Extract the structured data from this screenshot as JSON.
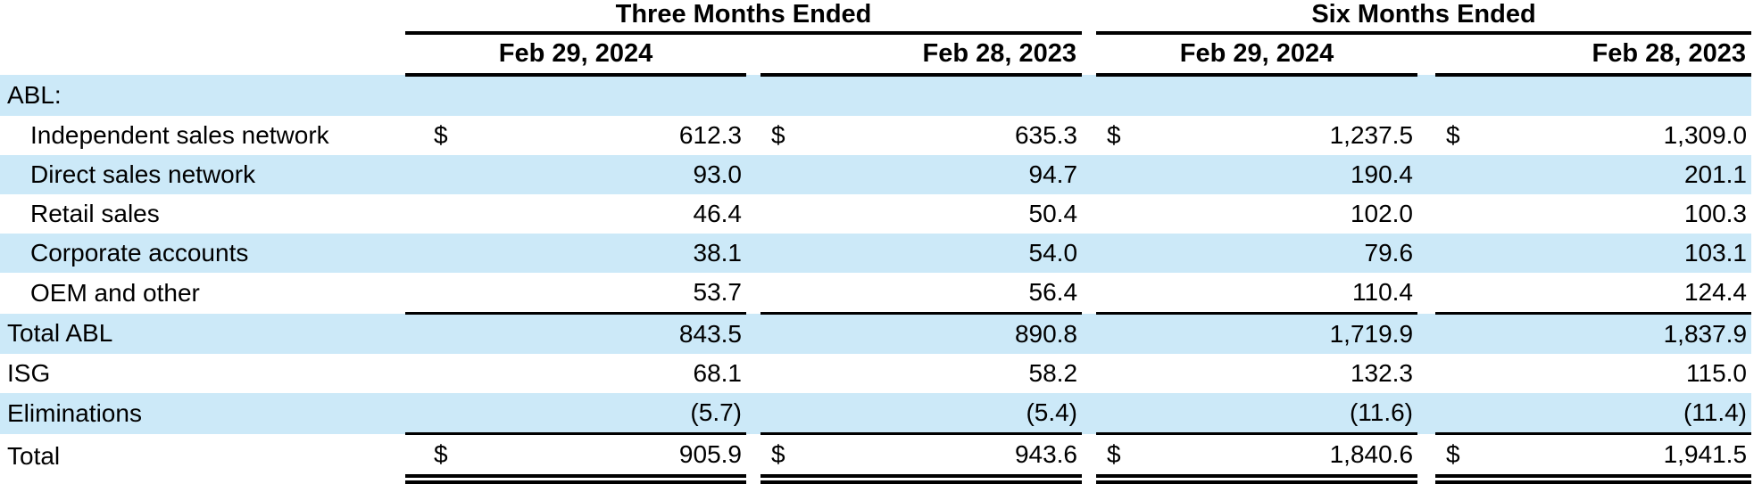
{
  "page": {
    "background_color": "#ffffff",
    "text_color": "#000000",
    "highlight_row_color": "#cce9f8"
  },
  "table": {
    "period_groups": [
      {
        "label": "Three Months Ended",
        "dates": [
          {
            "label": "Feb 29, 2024"
          },
          {
            "label": "Feb 28, 2023"
          }
        ]
      },
      {
        "label": "Six Months Ended",
        "dates": [
          {
            "label": "Feb 29, 2024"
          },
          {
            "label": "Feb 28, 2023"
          }
        ]
      }
    ],
    "rows": [
      {
        "label": "ABL:",
        "indent": false,
        "highlight": true,
        "dollar": false,
        "values": [
          "",
          "",
          "",
          ""
        ]
      },
      {
        "label": "Independent sales network",
        "indent": true,
        "highlight": false,
        "dollar": true,
        "values": [
          "612.3",
          "635.3",
          "1,237.5",
          "1,309.0"
        ]
      },
      {
        "label": "Direct sales network",
        "indent": true,
        "highlight": true,
        "dollar": false,
        "values": [
          "93.0",
          "94.7",
          "190.4",
          "201.1"
        ]
      },
      {
        "label": "Retail sales",
        "indent": true,
        "highlight": false,
        "dollar": false,
        "values": [
          "46.4",
          "50.4",
          "102.0",
          "100.3"
        ]
      },
      {
        "label": "Corporate accounts",
        "indent": true,
        "highlight": true,
        "dollar": false,
        "values": [
          "38.1",
          "54.0",
          "79.6",
          "103.1"
        ]
      },
      {
        "label": "OEM and other",
        "indent": true,
        "highlight": false,
        "dollar": false,
        "values": [
          "53.7",
          "56.4",
          "110.4",
          "124.4"
        ],
        "rule_below": true
      },
      {
        "label": "Total ABL",
        "indent": false,
        "highlight": true,
        "dollar": false,
        "values": [
          "843.5",
          "890.8",
          "1,719.9",
          "1,837.9"
        ]
      },
      {
        "label": "ISG",
        "indent": false,
        "highlight": false,
        "dollar": false,
        "values": [
          "68.1",
          "58.2",
          "132.3",
          "115.0"
        ]
      },
      {
        "label": "Eliminations",
        "indent": false,
        "highlight": true,
        "dollar": false,
        "values": [
          "(5.7)",
          "(5.4)",
          "(11.6)",
          "(11.4)"
        ],
        "rule_below": true
      },
      {
        "label": "Total",
        "indent": false,
        "highlight": false,
        "dollar": true,
        "values": [
          "905.9",
          "943.6",
          "1,840.6",
          "1,941.5"
        ],
        "double_rule_below": true
      }
    ],
    "dollar_sign": "$"
  },
  "chart_data": {
    "type": "table",
    "title": "",
    "column_groups": [
      "Three Months Ended",
      "Six Months Ended"
    ],
    "columns": [
      "Three Months Ended Feb 29, 2024",
      "Three Months Ended Feb 28, 2023",
      "Six Months Ended Feb 29, 2024",
      "Six Months Ended Feb 28, 2023"
    ],
    "rows": [
      {
        "label": "Independent sales network",
        "values": [
          612.3,
          635.3,
          1237.5,
          1309.0
        ]
      },
      {
        "label": "Direct sales network",
        "values": [
          93.0,
          94.7,
          190.4,
          201.1
        ]
      },
      {
        "label": "Retail sales",
        "values": [
          46.4,
          50.4,
          102.0,
          100.3
        ]
      },
      {
        "label": "Corporate accounts",
        "values": [
          38.1,
          54.0,
          79.6,
          103.1
        ]
      },
      {
        "label": "OEM and other",
        "values": [
          53.7,
          56.4,
          110.4,
          124.4
        ]
      },
      {
        "label": "Total ABL",
        "values": [
          843.5,
          890.8,
          1719.9,
          1837.9
        ]
      },
      {
        "label": "ISG",
        "values": [
          68.1,
          58.2,
          132.3,
          115.0
        ]
      },
      {
        "label": "Eliminations",
        "values": [
          -5.7,
          -5.4,
          -11.6,
          -11.4
        ]
      },
      {
        "label": "Total",
        "values": [
          905.9,
          943.6,
          1840.6,
          1941.5
        ]
      }
    ]
  }
}
